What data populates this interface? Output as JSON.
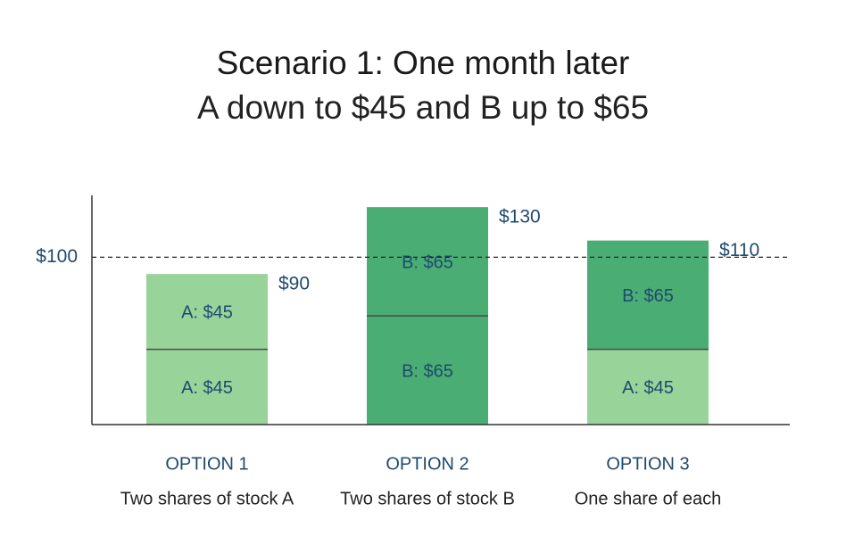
{
  "chart_data": {
    "type": "bar",
    "stacked": true,
    "title": "Scenario 1: One month later",
    "subtitle": "A down to $45 and B up to $65",
    "categories": [
      "OPTION 1",
      "OPTION 2",
      "OPTION 3"
    ],
    "descriptions": [
      "Two shares of stock A",
      "Two shares of stock B",
      "One share of each"
    ],
    "bars": [
      {
        "segments": [
          {
            "label": "A: $45",
            "value": 45,
            "stock": "A"
          },
          {
            "label": "A: $45",
            "value": 45,
            "stock": "A"
          }
        ],
        "total_label": "$90",
        "total": 90
      },
      {
        "segments": [
          {
            "label": "B: $65",
            "value": 65,
            "stock": "B"
          },
          {
            "label": "B: $65",
            "value": 65,
            "stock": "B"
          }
        ],
        "total_label": "$130",
        "total": 130
      },
      {
        "segments": [
          {
            "label": "A: $45",
            "value": 45,
            "stock": "A"
          },
          {
            "label": "B: $65",
            "value": 65,
            "stock": "B"
          }
        ],
        "total_label": "$110",
        "total": 110
      }
    ],
    "reference_line": {
      "value": 100,
      "label": "$100",
      "style": "dashed"
    },
    "ylim": [
      0,
      137
    ],
    "colors": {
      "A": "#98d39a",
      "B": "#4aad74",
      "label_text": "#1f4a6e",
      "option_text": "#1f4a6e",
      "axis": "#333333",
      "divider": "#4a4a4a"
    },
    "grid": false,
    "legend": "none"
  }
}
